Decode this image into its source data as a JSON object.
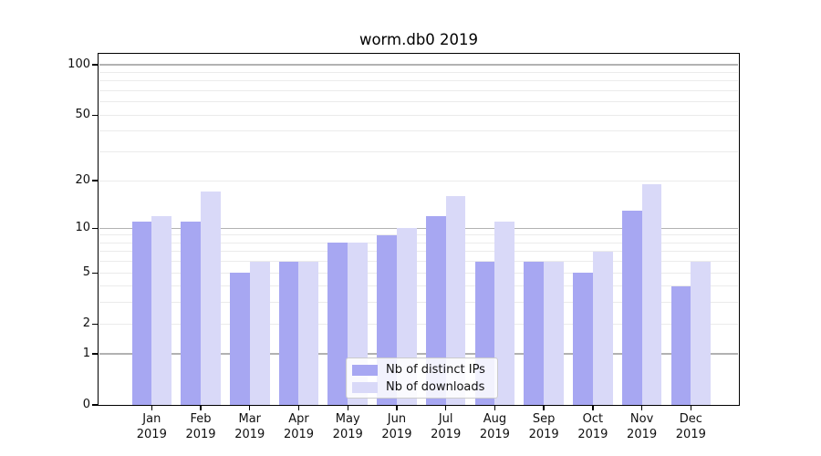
{
  "figure": {
    "title": "worm.db0 2019"
  },
  "chart_data": {
    "type": "bar",
    "title": "worm.db0 2019",
    "categories": [
      "Jan 2019",
      "Feb 2019",
      "Mar 2019",
      "Apr 2019",
      "May 2019",
      "Jun 2019",
      "Jul 2019",
      "Aug 2019",
      "Sep 2019",
      "Oct 2019",
      "Nov 2019",
      "Dec 2019"
    ],
    "months": [
      "Jan",
      "Feb",
      "Mar",
      "Apr",
      "May",
      "Jun",
      "Jul",
      "Aug",
      "Sep",
      "Oct",
      "Nov",
      "Dec"
    ],
    "year": "2019",
    "series": [
      {
        "name": "Nb of distinct IPs",
        "color": "#a7a7f2",
        "values": [
          11,
          11,
          5,
          6,
          8,
          9,
          12,
          6,
          6,
          5,
          13,
          4
        ]
      },
      {
        "name": "Nb of downloads",
        "color": "#d9d9f8",
        "values": [
          12,
          17,
          6,
          6,
          8,
          10,
          16,
          11,
          6,
          7,
          19,
          6
        ]
      }
    ],
    "xlabel": "",
    "ylabel": "",
    "y_axis": {
      "ticks": [
        0,
        1,
        2,
        5,
        10,
        20,
        50,
        100
      ],
      "scale": "log10(v+1)",
      "ylim": [
        0,
        116
      ],
      "grid_major": [
        1,
        10,
        100
      ],
      "grid_minor": [
        2,
        3,
        4,
        5,
        6,
        7,
        8,
        9,
        20,
        30,
        40,
        50,
        60,
        70,
        80,
        90
      ]
    },
    "grid": "on",
    "legend": {
      "position": "lower center",
      "entries": [
        "Nb of distinct IPs",
        "Nb of downloads"
      ]
    },
    "colors": {
      "grid_major": "#b2b2b2",
      "grid_minor": "#ebebeb",
      "spine": "#000000",
      "text": "#0f0f0f"
    }
  }
}
